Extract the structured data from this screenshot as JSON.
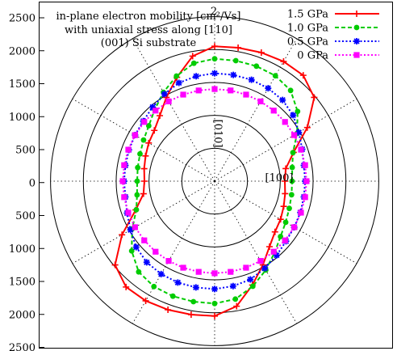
{
  "chart_data": {
    "type": "line",
    "subtype": "polar",
    "title_lines": [
      "in-plane electron mobility [cm²/Vs]",
      "with uniaxial stress along [110]",
      "(001) Si substrate"
    ],
    "axis_labels": {
      "direction_100": "[100]",
      "direction_010": "[010]",
      "top_label": "2"
    },
    "radial_unit": "cm²/Vs",
    "radial_range": [
      0,
      2500
    ],
    "radial_grid": [
      500,
      1000,
      1500,
      2000,
      2500
    ],
    "ytick_labels": [
      "2500",
      "2000",
      "1500",
      "1000",
      "500",
      "0",
      "500",
      "1000",
      "1500",
      "2000",
      "2500"
    ],
    "angles_deg": [
      0,
      10,
      20,
      30,
      40,
      50,
      60,
      70,
      80,
      90,
      100,
      110,
      120,
      130,
      140,
      150,
      160,
      170,
      180,
      190,
      200,
      210,
      220,
      230,
      240,
      250,
      260,
      270,
      280,
      290,
      300,
      310,
      320,
      330,
      340,
      350
    ],
    "legend_position": "top-right",
    "series": [
      {
        "name": "1.5 GPa",
        "color": "#ff0000",
        "marker": "plus",
        "dash": "solid",
        "values": [
          1070,
          1100,
          1280,
          1630,
          1980,
          2100,
          2100,
          2080,
          2060,
          2050,
          1930,
          1680,
          1470,
          1300,
          1200,
          1160,
          1120,
          1090,
          1070,
          1100,
          1280,
          1630,
          1980,
          2100,
          2100,
          2080,
          2060,
          2050,
          1930,
          1680,
          1470,
          1300,
          1200,
          1160,
          1120,
          1090
        ]
      },
      {
        "name": "1.0 GPa",
        "color": "#00cc00",
        "marker": "circle",
        "dash": "dashed",
        "values": [
          1180,
          1200,
          1270,
          1450,
          1650,
          1800,
          1850,
          1860,
          1860,
          1860,
          1820,
          1700,
          1560,
          1420,
          1310,
          1250,
          1210,
          1190,
          1180,
          1200,
          1270,
          1450,
          1650,
          1800,
          1850,
          1860,
          1860,
          1860,
          1820,
          1700,
          1560,
          1420,
          1310,
          1250,
          1210,
          1190
        ]
      },
      {
        "name": "0.5 GPa",
        "color": "#0000ff",
        "marker": "star",
        "dash": "dotted",
        "values": [
          1380,
          1380,
          1420,
          1480,
          1560,
          1610,
          1630,
          1640,
          1640,
          1640,
          1620,
          1590,
          1530,
          1470,
          1420,
          1400,
          1390,
          1380,
          1380,
          1380,
          1420,
          1480,
          1560,
          1610,
          1630,
          1640,
          1640,
          1640,
          1620,
          1590,
          1530,
          1470,
          1420,
          1400,
          1390,
          1380
        ]
      },
      {
        "name": "0 GPa",
        "color": "#ff00ff",
        "marker": "square",
        "dash": "dotted",
        "values": [
          1400,
          1400,
          1400,
          1400,
          1400,
          1400,
          1400,
          1400,
          1400,
          1400,
          1400,
          1400,
          1400,
          1400,
          1400,
          1400,
          1400,
          1400,
          1400,
          1400,
          1400,
          1400,
          1400,
          1400,
          1400,
          1400,
          1400,
          1400,
          1400,
          1400,
          1400,
          1400,
          1400,
          1400,
          1400,
          1400
        ]
      }
    ]
  }
}
